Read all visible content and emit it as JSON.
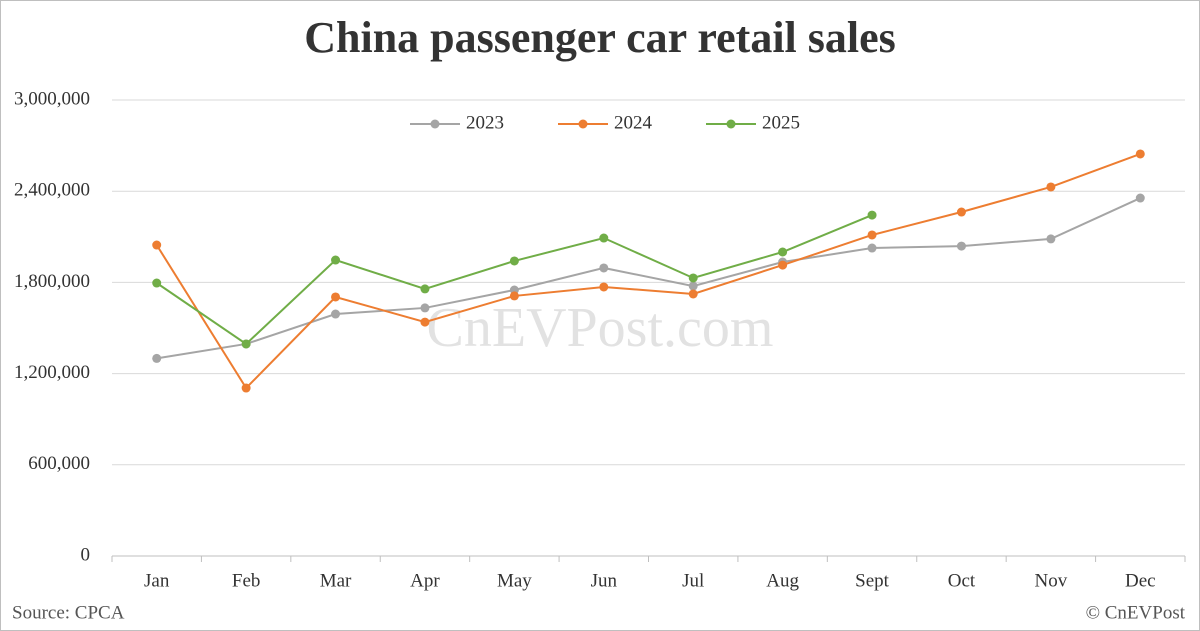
{
  "chart_data": {
    "type": "line",
    "title": "China passenger car retail sales",
    "watermark": "CnEVPost.com",
    "source": "Source: CPCA",
    "credit": "© CnEVPost",
    "categories": [
      "Jan",
      "Feb",
      "Mar",
      "Apr",
      "May",
      "Jun",
      "Jul",
      "Aug",
      "Sept",
      "Oct",
      "Nov",
      "Dec"
    ],
    "series": [
      {
        "name": "2023",
        "color": "#a5a5a5",
        "values": [
          1300000,
          1395000,
          1592000,
          1632000,
          1750000,
          1895000,
          1776000,
          1934000,
          2026000,
          2039000,
          2086000,
          2355000
        ]
      },
      {
        "name": "2024",
        "color": "#ed7d31",
        "values": [
          2046000,
          1105000,
          1704000,
          1539000,
          1711000,
          1770000,
          1724000,
          1914000,
          2112000,
          2263000,
          2428000,
          2645000
        ]
      },
      {
        "name": "2025",
        "color": "#70ad47",
        "values": [
          1796000,
          1395000,
          1947000,
          1757000,
          1941000,
          2092000,
          1829000,
          2000000,
          2243000,
          null,
          null,
          null
        ]
      }
    ],
    "ylim": [
      0,
      3000000
    ],
    "yticks": [
      0,
      {
        "value": 600000,
        "label": "600,000"
      },
      {
        "value": 1200000,
        "label": "1,200,000"
      },
      {
        "value": 1800000,
        "label": "1,800,000"
      },
      {
        "value": 2400000,
        "label": "2,400,000"
      },
      {
        "value": 3000000,
        "label": "3,000,000"
      }
    ],
    "grid": true,
    "legend": "top"
  }
}
